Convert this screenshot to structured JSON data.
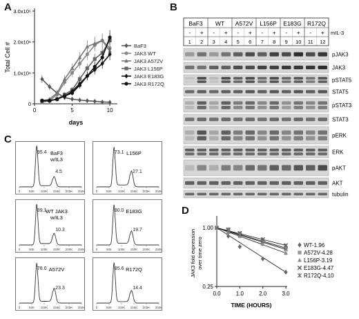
{
  "panels": {
    "A": {
      "label": "A"
    },
    "B": {
      "label": "B"
    },
    "C": {
      "label": "C"
    },
    "D": {
      "label": "D"
    }
  },
  "panelA": {
    "ylabel": "Total Cell #",
    "xlabel": "days",
    "yticks": [
      "0",
      "1.0x10⁶",
      "2.0x10⁶",
      "3.0x10⁶"
    ],
    "xticks": [
      "0",
      "5",
      "10"
    ],
    "legend": [
      {
        "name": "BaF3",
        "marker": "diamond",
        "color": "#555555"
      },
      {
        "name": "JAK3 WT",
        "marker": "circle",
        "color": "#888888"
      },
      {
        "name": "JAK3 A572V",
        "marker": "triangle",
        "color": "#777777"
      },
      {
        "name": "JAK3 L156P",
        "marker": "square",
        "color": "#666666"
      },
      {
        "name": "JAK3 E183G",
        "marker": "diamond",
        "color": "#111111"
      },
      {
        "name": "JAK3 R172Q",
        "marker": "circle",
        "color": "#111111"
      }
    ]
  },
  "chart_data": [
    {
      "type": "line",
      "xlabel": "days",
      "ylabel": "Total Cell #",
      "xlim": [
        0,
        11
      ],
      "ylim": [
        0,
        3000000
      ],
      "x": [
        1,
        2,
        3,
        4,
        5,
        6,
        7,
        8,
        9,
        10
      ],
      "series": [
        {
          "name": "BaF3",
          "values": [
            800000,
            550000,
            350000,
            200000,
            150000,
            120000,
            100000,
            80000,
            60000,
            50000
          ]
        },
        {
          "name": "JAK3 WT",
          "values": [
            50000,
            100000,
            300000,
            700000,
            1000000,
            1300000,
            1600000,
            1900000,
            2050000,
            1800000
          ]
        },
        {
          "name": "JAK3 A572V",
          "values": [
            100000,
            150000,
            350000,
            800000,
            1150000,
            1500000,
            1850000,
            1950000,
            2050000,
            1700000
          ]
        },
        {
          "name": "JAK3 L156P",
          "values": [
            100000,
            100000,
            150000,
            300000,
            450000,
            800000,
            1150000,
            1450000,
            1650000,
            2050000
          ]
        },
        {
          "name": "JAK3 E183G",
          "values": [
            100000,
            100000,
            150000,
            250000,
            400000,
            650000,
            900000,
            1100000,
            1300000,
            1600000
          ]
        },
        {
          "name": "JAK3 R172Q",
          "values": [
            100000,
            100000,
            150000,
            250000,
            350000,
            600000,
            900000,
            1200000,
            1500000,
            2150000
          ]
        }
      ]
    },
    {
      "type": "scatter",
      "xlabel": "TIME (HOURS)",
      "ylabel": "JAK3 fold expression over time zero",
      "xlim": [
        0,
        3
      ],
      "ylim": [
        0.25,
        1.2
      ],
      "yscale": "log",
      "xticks": [
        "0.0",
        "1.0",
        "2.0",
        "3.0"
      ],
      "yticks": [
        "1.00",
        "0.25"
      ],
      "x": [
        0,
        0.5,
        1,
        2,
        3
      ],
      "series": [
        {
          "name": "WT-1.96",
          "marker": "diamond",
          "values": [
            1.0,
            0.82,
            0.64,
            0.48,
            0.35
          ]
        },
        {
          "name": "A572V-4.28",
          "marker": "square",
          "values": [
            1.0,
            0.95,
            0.86,
            0.73,
            0.62
          ]
        },
        {
          "name": "L156P-3.19",
          "marker": "triangle",
          "values": [
            1.0,
            0.9,
            0.82,
            0.68,
            0.55
          ]
        },
        {
          "name": "E183G-4.47",
          "marker": "x",
          "values": [
            1.0,
            0.96,
            0.88,
            0.76,
            0.66
          ]
        },
        {
          "name": "R172Q-4.10",
          "marker": "star",
          "values": [
            1.0,
            0.94,
            0.85,
            0.72,
            0.6
          ]
        }
      ]
    }
  ],
  "panelB": {
    "groups": [
      "BaF3",
      "WT",
      "A572V",
      "L156P",
      "E183G",
      "R172Q"
    ],
    "mil3_signs": [
      "-",
      "+",
      "-",
      "+",
      "-",
      "+",
      "-",
      "+",
      "-",
      "+",
      "-",
      "+"
    ],
    "mil3_label": "mIL-3",
    "lanes": [
      "1",
      "2",
      "3",
      "4",
      "5",
      "6",
      "7",
      "8",
      "9",
      "10",
      "11",
      "12"
    ],
    "rows": [
      "pJAK3",
      "JAK3",
      "pSTAT5",
      "STAT5",
      "pSTAT3",
      "STAT3",
      "pERK",
      "ERK",
      "pAKT",
      "AKT",
      "tubulin"
    ]
  },
  "panelC": {
    "xticks": [
      "0",
      "50K",
      "100K",
      "150K",
      "200K",
      "250K"
    ],
    "histograms": [
      {
        "label": "BaF3 w/IL3",
        "peak1": "95.4",
        "peak2": "4.5"
      },
      {
        "label": "L156P",
        "peak1": "73.1",
        "peak2": "27.1"
      },
      {
        "label": "WT JAK3 w/IL3",
        "peak1": "89.1",
        "peak2": "10.3"
      },
      {
        "label": "E183G",
        "peak1": "80.0",
        "peak2": "19.7"
      },
      {
        "label": "A572V",
        "peak1": "78.0",
        "peak2": "23.3"
      },
      {
        "label": "R172Q",
        "peak1": "85.6",
        "peak2": "14.4"
      }
    ]
  }
}
